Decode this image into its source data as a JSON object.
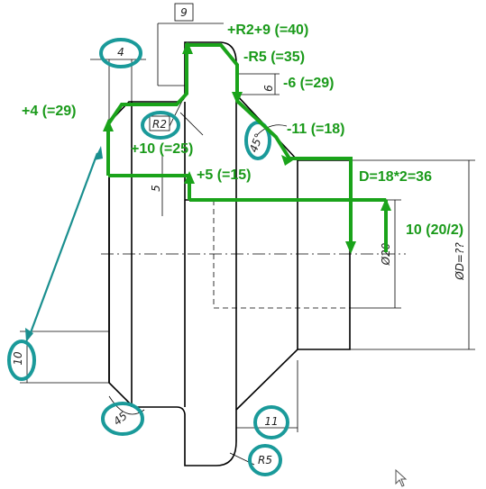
{
  "dimensions": {
    "width_9": "9",
    "width_4": "4",
    "depth_6": "6",
    "radius_r2": "R2",
    "angle_45_top": "45°",
    "height_5": "5",
    "dia_20": "Ø20",
    "dia_d": "ØD=??",
    "height_10": "10",
    "angle_45_bottom": "45",
    "width_11": "11",
    "radius_r5": "R5"
  },
  "annotations": {
    "r2_plus_9": "+R2+9 (=40)",
    "minus_r5": "-R5 (=35)",
    "minus_6": "-6 (=29)",
    "plus_4": "+4 (=29)",
    "minus_11": "-11 (=18)",
    "plus_10": "+10 (=25)",
    "plus_5": "+5 (=15)",
    "d_formula": "D=18*2=36",
    "ten_half": "10 (20/2)"
  },
  "colors": {
    "annotation_green": "#1aa31a",
    "highlight_teal": "#1a9a9a",
    "line_black": "#000000"
  },
  "icons": [
    "mouse-cursor-icon"
  ]
}
